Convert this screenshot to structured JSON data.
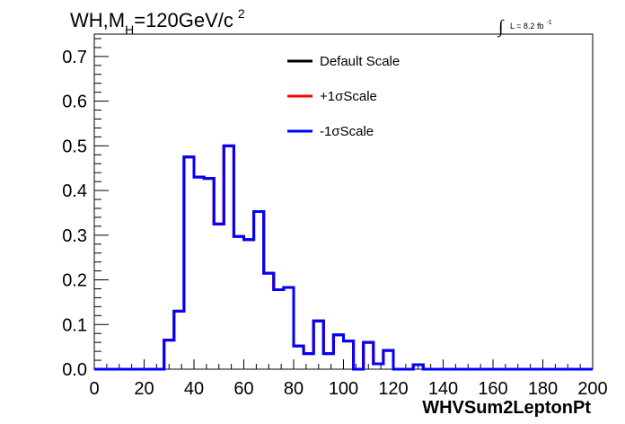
{
  "chart_data": {
    "type": "line",
    "title": {
      "main": "WH,M",
      "subscript": "H",
      "rest": "=120GeV/c",
      "superscript": "2"
    },
    "lumi": {
      "integral_sign": "∫",
      "text": "L = 8.2 fb",
      "superscript": "-1"
    },
    "xlabel": "WHVSum2LeptonPt",
    "ylabel": "",
    "xlim": [
      0,
      200
    ],
    "ylim": [
      0,
      0.75
    ],
    "x_ticks": [
      0,
      20,
      40,
      60,
      80,
      100,
      120,
      140,
      160,
      180,
      200
    ],
    "x_tick_labels": [
      "0",
      "20",
      "40",
      "60",
      "80",
      "100",
      "120",
      "140",
      "160",
      "180",
      "200"
    ],
    "y_ticks": [
      0,
      0.1,
      0.2,
      0.3,
      0.4,
      0.5,
      0.6,
      0.7
    ],
    "y_tick_labels": [
      "0.0",
      "0.1",
      "0.2",
      "0.3",
      "0.4",
      "0.5",
      "0.6",
      "0.7"
    ],
    "legend_position": "top-center",
    "bin_width": 4,
    "bin_edges_start": 0,
    "series": [
      {
        "name": "Default Scale",
        "color": "#000000",
        "values": [
          0,
          0,
          0,
          0,
          0,
          0,
          0,
          0.065,
          0.13,
          0.475,
          0.43,
          0.427,
          0.325,
          0.5,
          0.297,
          0.29,
          0.353,
          0.215,
          0.178,
          0.183,
          0.052,
          0.035,
          0.108,
          0.035,
          0.077,
          0.063,
          0,
          0.06,
          0.012,
          0.042,
          0,
          0,
          0.01,
          0,
          0,
          0,
          0,
          0,
          0,
          0,
          0,
          0,
          0,
          0,
          0,
          0,
          0,
          0,
          0,
          0
        ]
      },
      {
        "name": "+1σScale",
        "color": "#ff0000",
        "values": [
          0,
          0,
          0,
          0,
          0,
          0,
          0,
          0.065,
          0.13,
          0.475,
          0.43,
          0.427,
          0.325,
          0.5,
          0.297,
          0.29,
          0.353,
          0.215,
          0.178,
          0.183,
          0.052,
          0.035,
          0.108,
          0.035,
          0.077,
          0.063,
          0,
          0.06,
          0.012,
          0.042,
          0,
          0,
          0.01,
          0,
          0,
          0,
          0,
          0,
          0,
          0,
          0,
          0,
          0,
          0,
          0,
          0,
          0,
          0,
          0,
          0
        ]
      },
      {
        "name": "-1σScale",
        "color": "#0000ff",
        "values": [
          0,
          0,
          0,
          0,
          0,
          0,
          0,
          0.065,
          0.13,
          0.475,
          0.43,
          0.427,
          0.325,
          0.5,
          0.297,
          0.29,
          0.353,
          0.215,
          0.178,
          0.183,
          0.052,
          0.035,
          0.108,
          0.035,
          0.077,
          0.063,
          0,
          0.06,
          0.012,
          0.042,
          0,
          0,
          0.01,
          0,
          0,
          0,
          0,
          0,
          0,
          0,
          0,
          0,
          0,
          0,
          0,
          0,
          0,
          0,
          0,
          0
        ]
      }
    ]
  }
}
